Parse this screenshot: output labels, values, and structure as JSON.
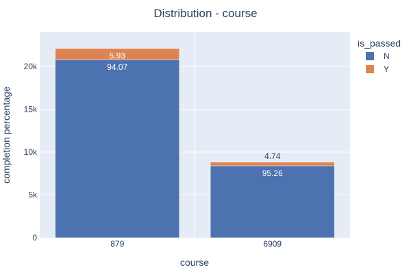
{
  "chart_data": {
    "type": "bar",
    "barmode": "stack",
    "title": "Distribution - course",
    "xlabel": "course",
    "ylabel": "completion percentage",
    "categories": [
      "879",
      "6909"
    ],
    "ylim": [
      0,
      24000
    ],
    "yticks": [
      0,
      5000,
      10000,
      15000,
      20000
    ],
    "ytick_labels": [
      "0",
      "5k",
      "10k",
      "15k",
      "20k"
    ],
    "grid": true,
    "legend": {
      "title": "is_passed",
      "placement": "top-right"
    },
    "series": [
      {
        "name": "N",
        "color": "#4c72b0",
        "values": [
          20800,
          8400
        ],
        "labels": [
          "94.07",
          "95.26"
        ]
      },
      {
        "name": "Y",
        "color": "#dd8452",
        "values": [
          1310,
          420
        ],
        "labels": [
          "5.93",
          "4.74"
        ]
      }
    ]
  }
}
